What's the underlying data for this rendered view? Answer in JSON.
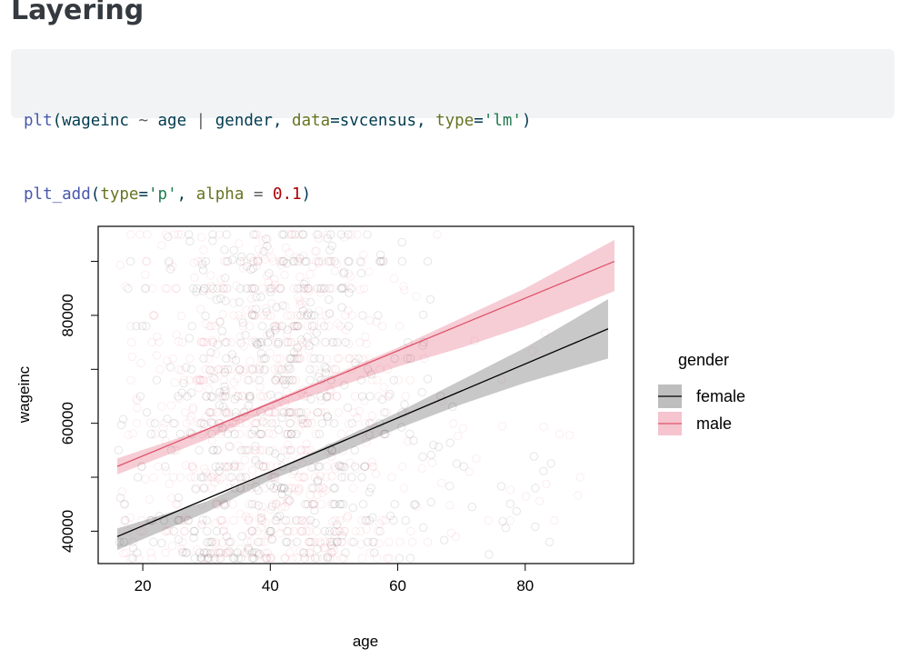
{
  "page": {
    "title": "Layering"
  },
  "code": {
    "line1": [
      {
        "t": "plt",
        "c": "fn"
      },
      {
        "t": "(wageinc ",
        "c": "txt"
      },
      {
        "t": "~",
        "c": "op"
      },
      {
        "t": " age ",
        "c": "txt"
      },
      {
        "t": "|",
        "c": "op"
      },
      {
        "t": " gender, ",
        "c": "txt"
      },
      {
        "t": "data",
        "c": "arg"
      },
      {
        "t": "=svcensus, ",
        "c": "txt"
      },
      {
        "t": "type",
        "c": "arg"
      },
      {
        "t": "=",
        "c": "txt"
      },
      {
        "t": "'lm'",
        "c": "str"
      },
      {
        "t": ")",
        "c": "txt"
      }
    ],
    "line2": [
      {
        "t": "plt_add",
        "c": "fn"
      },
      {
        "t": "(",
        "c": "txt"
      },
      {
        "t": "type",
        "c": "arg"
      },
      {
        "t": "=",
        "c": "txt"
      },
      {
        "t": "'p'",
        "c": "str"
      },
      {
        "t": ", ",
        "c": "txt"
      },
      {
        "t": "alpha",
        "c": "arg"
      },
      {
        "t": " ",
        "c": "txt"
      },
      {
        "t": "=",
        "c": "op"
      },
      {
        "t": " ",
        "c": "txt"
      },
      {
        "t": "0.1",
        "c": "num"
      },
      {
        "t": ")",
        "c": "txt"
      }
    ]
  },
  "chart_data": {
    "type": "scatter",
    "xlabel": "age",
    "ylabel": "wageinc",
    "xlim": [
      13,
      97
    ],
    "ylim": [
      34000,
      96500
    ],
    "xticks": [
      20,
      40,
      60,
      80
    ],
    "yticks": [
      40000,
      60000,
      80000
    ],
    "grid": false,
    "legend": {
      "title": "gender",
      "placement": "right"
    },
    "series": [
      {
        "name": "female",
        "color": "#000000",
        "band_color": "#bebebe",
        "fit": {
          "x": [
            16,
            93
          ],
          "y": [
            39000,
            77500
          ]
        },
        "ci_upper": [
          [
            16,
            40500
          ],
          [
            30,
            45500
          ],
          [
            40,
            51000
          ],
          [
            50,
            56500
          ],
          [
            60,
            62000
          ],
          [
            70,
            68000
          ],
          [
            80,
            74000
          ],
          [
            93,
            83000
          ]
        ],
        "ci_lower": [
          [
            16,
            36500
          ],
          [
            30,
            43500
          ],
          [
            40,
            49500
          ],
          [
            50,
            54000
          ],
          [
            60,
            59000
          ],
          [
            70,
            63500
          ],
          [
            80,
            67500
          ],
          [
            93,
            72000
          ]
        ]
      },
      {
        "name": "male",
        "color": "#df536b",
        "band_color": "#f5c4ce",
        "fit": {
          "x": [
            16,
            94
          ],
          "y": [
            52000,
            90000
          ]
        },
        "ci_upper": [
          [
            16,
            53500
          ],
          [
            30,
            59000
          ],
          [
            40,
            64000
          ],
          [
            50,
            69000
          ],
          [
            60,
            74000
          ],
          [
            70,
            79500
          ],
          [
            80,
            85000
          ],
          [
            94,
            94000
          ]
        ],
        "ci_lower": [
          [
            16,
            50500
          ],
          [
            30,
            57000
          ],
          [
            40,
            62500
          ],
          [
            50,
            66500
          ],
          [
            60,
            70500
          ],
          [
            70,
            74000
          ],
          [
            80,
            78000
          ],
          [
            94,
            84500
          ]
        ]
      }
    ],
    "points": {
      "alpha": 0.1,
      "xrange": [
        16,
        93
      ],
      "wage_levels": [
        35000,
        36000,
        38000,
        40000,
        42000,
        45000,
        48000,
        50000,
        52000,
        55000,
        58000,
        60000,
        62000,
        65000,
        68000,
        70000,
        72000,
        75000,
        78000,
        80000,
        85000,
        90000,
        95000
      ]
    }
  }
}
